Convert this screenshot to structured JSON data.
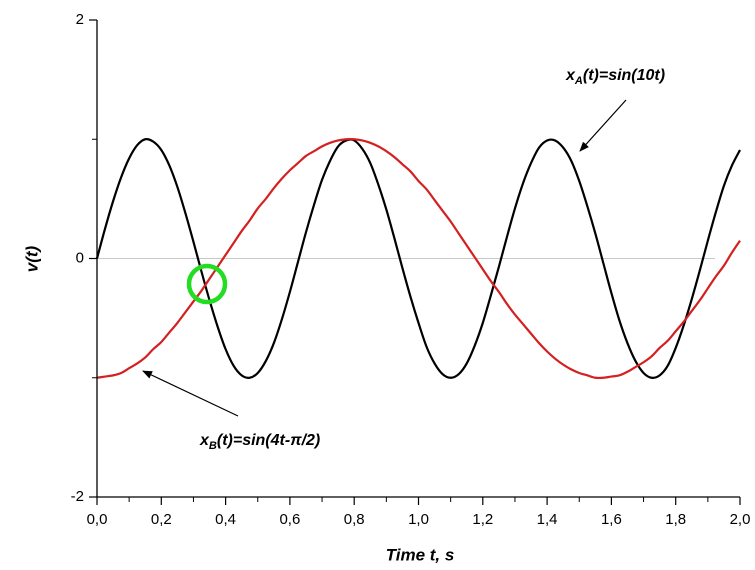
{
  "chart_data": {
    "type": "line",
    "x_label": "Time t, s",
    "y_label": "v(t)",
    "xlim": [
      0,
      2
    ],
    "ylim": [
      -2,
      2
    ],
    "xticks": [
      {
        "value": 0,
        "label": "0,0"
      },
      {
        "value": 0.2,
        "label": "0,2"
      },
      {
        "value": 0.4,
        "label": "0,4"
      },
      {
        "value": 0.6,
        "label": "0,6"
      },
      {
        "value": 0.8,
        "label": "0,8"
      },
      {
        "value": 1,
        "label": "1,0"
      },
      {
        "value": 1.2,
        "label": "1,2"
      },
      {
        "value": 1.4,
        "label": "1,4"
      },
      {
        "value": 1.6,
        "label": "1,6"
      },
      {
        "value": 1.8,
        "label": "1,8"
      },
      {
        "value": 2,
        "label": "2,0"
      }
    ],
    "yticks": [
      -2,
      0,
      2
    ],
    "zero_line": true,
    "x": [
      0,
      0.025,
      0.05,
      0.075,
      0.1,
      0.125,
      0.15,
      0.175,
      0.2,
      0.225,
      0.25,
      0.275,
      0.3,
      0.325,
      0.35,
      0.375,
      0.4,
      0.425,
      0.45,
      0.475,
      0.5,
      0.525,
      0.55,
      0.575,
      0.6,
      0.625,
      0.65,
      0.675,
      0.7,
      0.725,
      0.75,
      0.775,
      0.8,
      0.825,
      0.85,
      0.875,
      0.9,
      0.925,
      0.95,
      0.975,
      1,
      1.025,
      1.05,
      1.075,
      1.1,
      1.125,
      1.15,
      1.175,
      1.2,
      1.225,
      1.25,
      1.275,
      1.3,
      1.325,
      1.35,
      1.375,
      1.4,
      1.425,
      1.45,
      1.475,
      1.5,
      1.525,
      1.55,
      1.575,
      1.6,
      1.625,
      1.65,
      1.675,
      1.7,
      1.725,
      1.75,
      1.775,
      1.8,
      1.825,
      1.85,
      1.875,
      1.9,
      1.925,
      1.95,
      1.975,
      2
    ],
    "series": [
      {
        "color": "#000000",
        "values": [
          0,
          0.25,
          0.48,
          0.68,
          0.84,
          0.95,
          1.0,
          0.98,
          0.91,
          0.78,
          0.6,
          0.38,
          0.14,
          -0.11,
          -0.35,
          -0.57,
          -0.76,
          -0.9,
          -0.98,
          -1.0,
          -0.96,
          -0.86,
          -0.71,
          -0.51,
          -0.28,
          -0.03,
          0.22,
          0.45,
          0.66,
          0.82,
          0.94,
          0.99,
          0.99,
          0.92,
          0.8,
          0.62,
          0.41,
          0.17,
          -0.08,
          -0.32,
          -0.54,
          -0.74,
          -0.88,
          -0.97,
          -1.0,
          -0.97,
          -0.88,
          -0.73,
          -0.54,
          -0.31,
          -0.07,
          0.18,
          0.42,
          0.63,
          0.8,
          0.93,
          0.99,
          0.99,
          0.93,
          0.82,
          0.65,
          0.44,
          0.21,
          -0.04,
          -0.29,
          -0.52,
          -0.71,
          -0.86,
          -0.96,
          -1.0,
          -0.98,
          -0.9,
          -0.75,
          -0.56,
          -0.34,
          -0.1,
          0.15,
          0.39,
          0.61,
          0.78,
          0.91
        ]
      },
      {
        "color": "#d42020",
        "values": [
          -1.0,
          -0.99,
          -0.98,
          -0.96,
          -0.92,
          -0.88,
          -0.83,
          -0.76,
          -0.7,
          -0.62,
          -0.54,
          -0.45,
          -0.36,
          -0.27,
          -0.17,
          -0.07,
          0.03,
          0.13,
          0.23,
          0.32,
          0.42,
          0.5,
          0.59,
          0.67,
          0.74,
          0.8,
          0.86,
          0.9,
          0.94,
          0.97,
          0.99,
          1.0,
          1.0,
          0.99,
          0.97,
          0.94,
          0.9,
          0.85,
          0.79,
          0.73,
          0.65,
          0.58,
          0.49,
          0.4,
          0.31,
          0.21,
          0.11,
          0.01,
          -0.09,
          -0.19,
          -0.28,
          -0.38,
          -0.47,
          -0.55,
          -0.63,
          -0.71,
          -0.78,
          -0.84,
          -0.89,
          -0.93,
          -0.96,
          -0.98,
          -1.0,
          -1.0,
          -0.99,
          -0.98,
          -0.95,
          -0.91,
          -0.87,
          -0.82,
          -0.75,
          -0.69,
          -0.61,
          -0.53,
          -0.44,
          -0.35,
          -0.25,
          -0.15,
          -0.06,
          0.05,
          0.15
        ]
      }
    ],
    "annotations": [
      {
        "text": "x",
        "sub": "A",
        "rest": "(t)=sin(10t)"
      },
      {
        "text": "x",
        "sub": "B",
        "rest": "(t)=sin(4t-π/2)"
      }
    ]
  }
}
